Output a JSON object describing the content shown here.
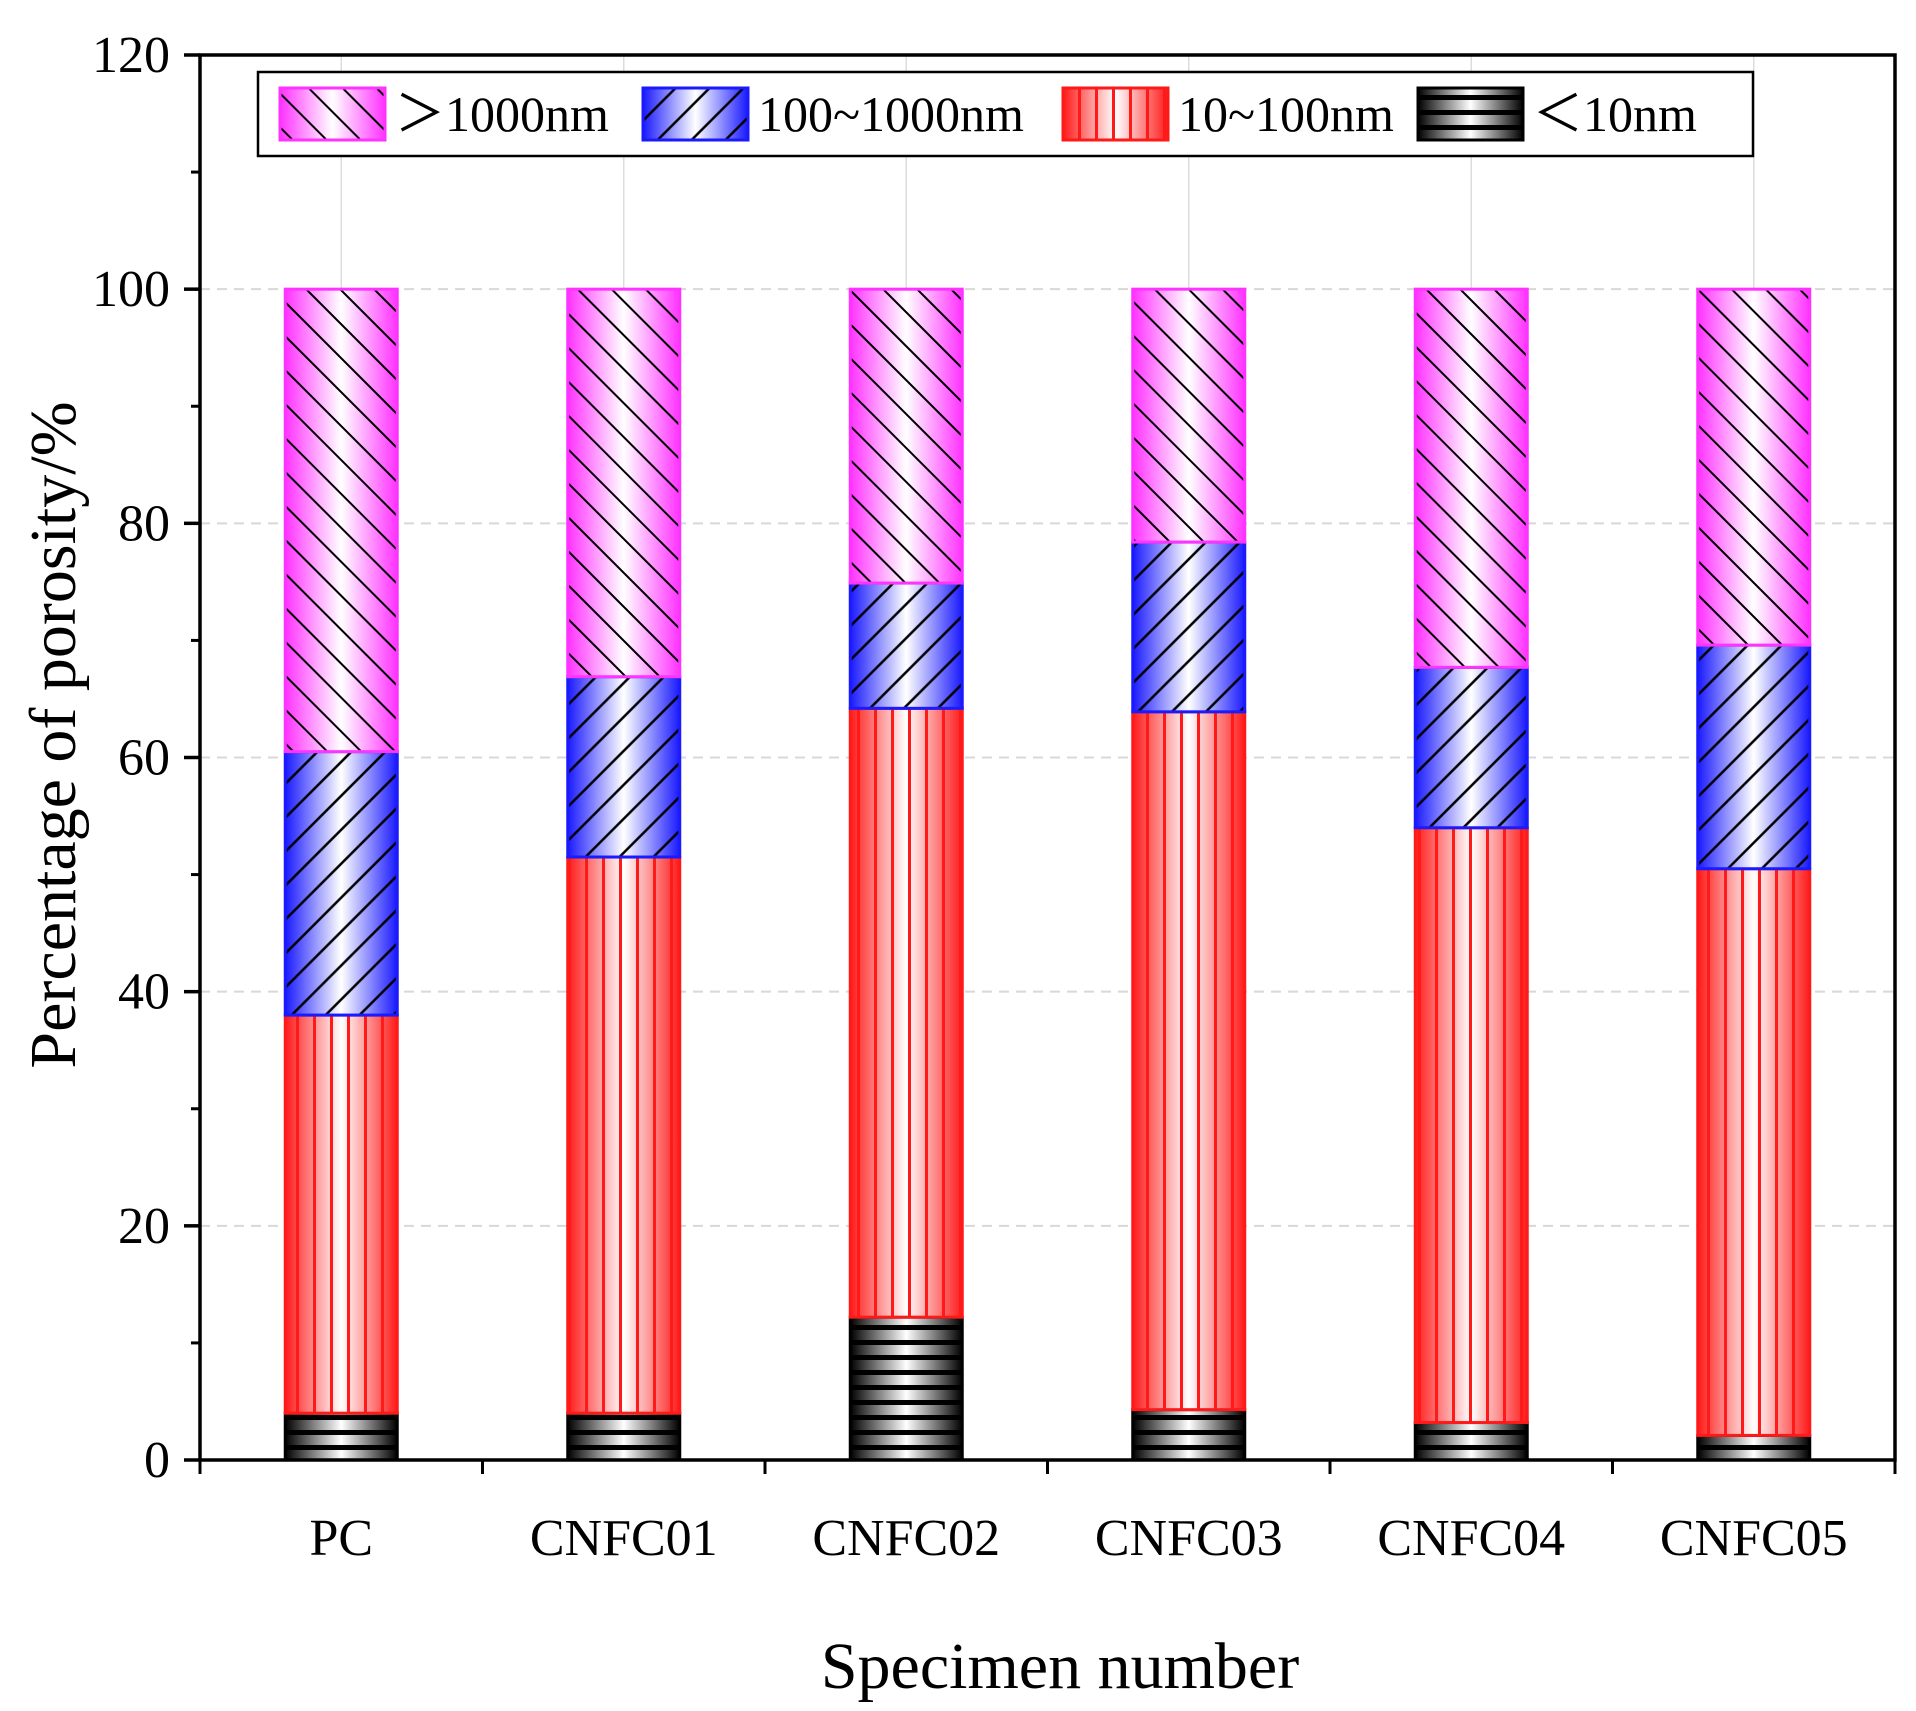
{
  "chart_data": {
    "type": "bar",
    "stacked": true,
    "title": "",
    "xlabel": "Specimen number",
    "ylabel": "Percentage of porosity/%",
    "ylim": [
      0,
      120
    ],
    "yticks": [
      0,
      20,
      40,
      60,
      80,
      100,
      120
    ],
    "grid": true,
    "legend_position": "top",
    "categories": [
      "PC",
      "CNFC01",
      "CNFC02",
      "CNFC03",
      "CNFC04",
      "CNFC05"
    ],
    "series": [
      {
        "name": "<10nm",
        "legend_label": "＜10nm",
        "color": "#000000",
        "pattern": "horizontal",
        "values": [
          4,
          4,
          12.2,
          4.3,
          3.2,
          2.1
        ]
      },
      {
        "name": "10~100nm",
        "legend_label": "10~100nm",
        "color": "#ff1a1a",
        "pattern": "vertical",
        "values": [
          34,
          47.5,
          52,
          59.6,
          50.8,
          48.4
        ]
      },
      {
        "name": "100~1000nm",
        "legend_label": "100~1000nm",
        "color": "#1a1aff",
        "pattern": "backslash",
        "values": [
          22.5,
          15.4,
          10.7,
          14.5,
          13.7,
          19.1
        ]
      },
      {
        "name": ">1000nm",
        "legend_label": "＞1000nm",
        "color": "#ff33ff",
        "pattern": "slash",
        "values": [
          39.5,
          33.1,
          25.1,
          21.6,
          32.3,
          30.4
        ]
      }
    ]
  }
}
